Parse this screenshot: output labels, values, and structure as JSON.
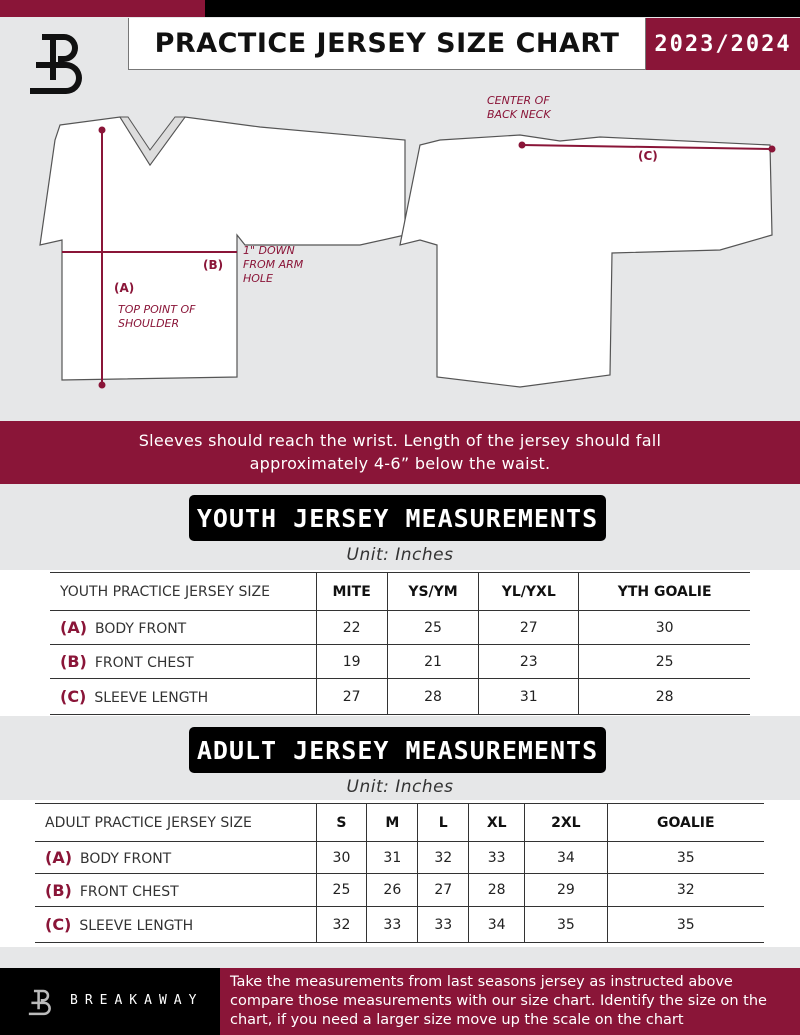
{
  "header": {
    "title": "PRACTICE JERSEY SIZE CHART",
    "season": "2023/2024"
  },
  "diagram": {
    "label_a": "(A)",
    "label_b": "(B)",
    "label_c": "(C)",
    "note_a": "TOP POINT OF SHOULDER",
    "note_b": "1\" DOWN FROM ARM HOLE",
    "note_c": "CENTER OF BACK NECK"
  },
  "instructions": "Sleeves should reach the wrist. Length of the jersey should fall approximately 4-6” below the waist.",
  "youth": {
    "title": "YOUTH JERSEY MEASUREMENTS",
    "unit": "Unit: Inches",
    "corner": "YOUTH PRACTICE JERSEY SIZE",
    "sizes": [
      "MITE",
      "YS/YM",
      "YL/YXL",
      "YTH GOALIE"
    ],
    "rows": [
      {
        "code": "(A)",
        "name": "BODY FRONT",
        "values": [
          "22",
          "25",
          "27",
          "30"
        ]
      },
      {
        "code": "(B)",
        "name": "FRONT CHEST",
        "values": [
          "19",
          "21",
          "23",
          "25"
        ]
      },
      {
        "code": "(C)",
        "name": "SLEEVE LENGTH",
        "values": [
          "27",
          "28",
          "31",
          "28"
        ]
      }
    ]
  },
  "adult": {
    "title": "ADULT JERSEY MEASUREMENTS",
    "unit": "Unit: Inches",
    "corner": "ADULT PRACTICE JERSEY SIZE",
    "sizes": [
      "S",
      "M",
      "L",
      "XL",
      "2XL",
      "GOALIE"
    ],
    "rows": [
      {
        "code": "(A)",
        "name": "BODY FRONT",
        "values": [
          "30",
          "31",
          "32",
          "33",
          "34",
          "35"
        ]
      },
      {
        "code": "(B)",
        "name": "FRONT CHEST",
        "values": [
          "25",
          "26",
          "27",
          "28",
          "29",
          "32"
        ]
      },
      {
        "code": "(C)",
        "name": "SLEEVE LENGTH",
        "values": [
          "32",
          "33",
          "33",
          "34",
          "35",
          "35"
        ]
      }
    ]
  },
  "footer": {
    "brand": "BREAKAWAY",
    "text": "Take the measurements from last seasons jersey as instructed above compare those measurements  with our size chart. Identify the size on the chart, if you need a larger size move up the scale on the chart"
  },
  "colors": {
    "accent": "#8a1538",
    "background": "#e6e7e8"
  }
}
